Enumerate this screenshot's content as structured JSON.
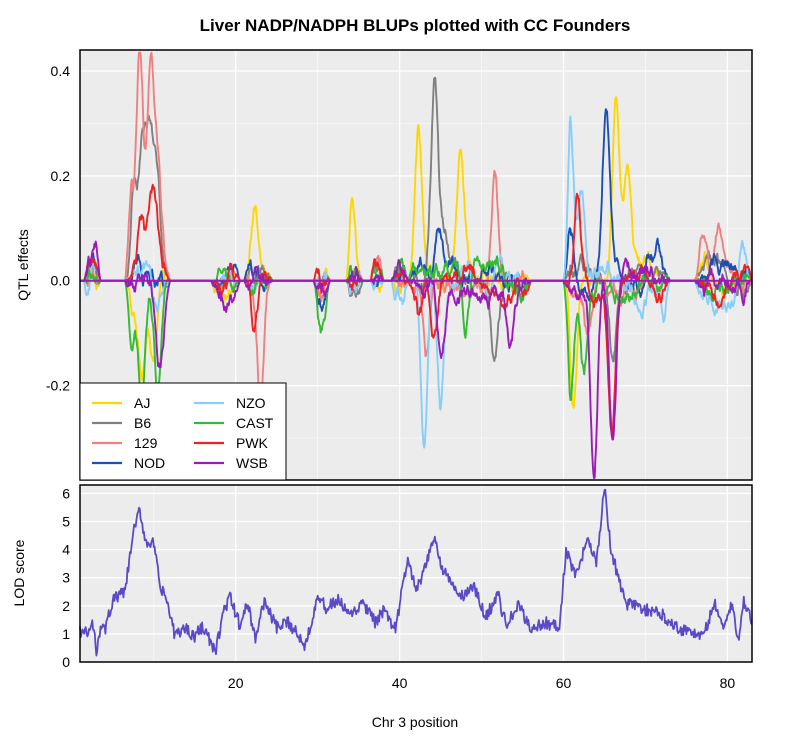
{
  "chart_data": {
    "type": "line",
    "title": "Liver NADP/NADPH BLUPs plotted with CC Founders",
    "xlabel": "Chr 3 position",
    "xlim": [
      1,
      83
    ],
    "xticks": [
      20,
      40,
      60,
      80
    ],
    "top_panel": {
      "ylabel": "QTL effects",
      "ylim": [
        -0.38,
        0.44
      ],
      "yticks": [
        -0.2,
        0.0,
        0.2,
        0.4
      ],
      "ytick_labels": [
        "-0.2",
        "0.0",
        "0.2",
        "0.4"
      ],
      "legend": {
        "placement": "bottom-left",
        "columns": 2
      },
      "segments": [
        [
          1.5,
          3.5
        ],
        [
          6.5,
          12
        ],
        [
          17,
          20.5
        ],
        [
          21,
          24.5
        ],
        [
          29.5,
          31.5
        ],
        [
          33.5,
          35.5
        ],
        [
          36.5,
          38
        ],
        [
          39,
          41
        ],
        [
          41,
          56
        ],
        [
          60,
          73
        ],
        [
          76,
          83
        ]
      ],
      "series": [
        {
          "name": "AJ",
          "color": "#FFD700",
          "anchors": [
            [
              7.5,
              -0.05
            ],
            [
              8.5,
              -0.15
            ],
            [
              10,
              -0.14
            ],
            [
              22.3,
              0.12
            ],
            [
              34.2,
              0.13
            ],
            [
              42.3,
              0.26
            ],
            [
              47.5,
              0.21
            ],
            [
              61.2,
              -0.26
            ],
            [
              66.4,
              0.33
            ],
            [
              67.8,
              0.21
            ]
          ]
        },
        {
          "name": "B6",
          "color": "#808080",
          "anchors": [
            [
              7.5,
              0.18
            ],
            [
              8.6,
              0.24
            ],
            [
              9.5,
              0.25
            ],
            [
              10.4,
              0.2
            ],
            [
              44.3,
              0.37
            ],
            [
              45.5,
              0.1
            ],
            [
              51.5,
              -0.13
            ],
            [
              66.0,
              -0.15
            ]
          ]
        },
        {
          "name": "129",
          "color": "#F08080",
          "anchors": [
            [
              7.0,
              0.18
            ],
            [
              8.3,
              0.43
            ],
            [
              9.6,
              0.38
            ],
            [
              10.5,
              0.18
            ],
            [
              23.0,
              -0.22
            ],
            [
              43.3,
              -0.14
            ],
            [
              51.6,
              0.22
            ],
            [
              63.0,
              -0.08
            ],
            [
              76.9,
              0.08
            ],
            [
              79.0,
              0.08
            ]
          ]
        },
        {
          "name": "NOD",
          "color": "#1C4FB5",
          "anchors": [
            [
              7.8,
              0.05
            ],
            [
              9.5,
              0.02
            ],
            [
              44.8,
              0.08
            ],
            [
              60.8,
              0.1
            ],
            [
              65.2,
              0.33
            ],
            [
              70.5,
              0.05
            ],
            [
              71.5,
              0.06
            ]
          ]
        },
        {
          "name": "NZO",
          "color": "#87CEFA",
          "anchors": [
            [
              1.6,
              -0.07
            ],
            [
              10.5,
              -0.06
            ],
            [
              43.0,
              -0.33
            ],
            [
              45.0,
              -0.26
            ],
            [
              60.8,
              0.29
            ],
            [
              62.2,
              0.14
            ],
            [
              72.3,
              -0.06
            ],
            [
              81.8,
              0.09
            ]
          ]
        },
        {
          "name": "CAST",
          "color": "#33BB33",
          "anchors": [
            [
              7.2,
              -0.1
            ],
            [
              8.5,
              -0.22
            ],
            [
              10.5,
              -0.2
            ],
            [
              30.5,
              -0.08
            ],
            [
              33.0,
              -0.14
            ],
            [
              48.0,
              -0.12
            ],
            [
              60.8,
              -0.2
            ],
            [
              62.5,
              -0.18
            ]
          ]
        },
        {
          "name": "PWK",
          "color": "#EE2222",
          "anchors": [
            [
              8.5,
              0.11
            ],
            [
              9.7,
              0.12
            ],
            [
              10.3,
              0.07
            ],
            [
              22.3,
              -0.1
            ],
            [
              29.8,
              0.04
            ],
            [
              36.5,
              0.04
            ],
            [
              42.5,
              -0.08
            ],
            [
              44.2,
              -0.1
            ],
            [
              61.7,
              0.17
            ],
            [
              65.9,
              -0.31
            ]
          ]
        },
        {
          "name": "WSB",
          "color": "#9B1BB8",
          "anchors": [
            [
              3.0,
              0.05
            ],
            [
              10.6,
              -0.14
            ],
            [
              11.5,
              -0.05
            ],
            [
              45.0,
              -0.12
            ],
            [
              53.5,
              -0.1
            ],
            [
              63.7,
              -0.38
            ],
            [
              66.0,
              -0.32
            ],
            [
              82.0,
              -0.07
            ]
          ]
        }
      ]
    },
    "bottom_panel": {
      "ylabel": "LOD score",
      "ylim": [
        0,
        6.3
      ],
      "yticks": [
        0,
        1,
        2,
        3,
        4,
        5,
        6
      ],
      "color": "#5A4AC8",
      "x": [
        1,
        2,
        2.5,
        3,
        3.5,
        4,
        5,
        6.5,
        7.5,
        8.3,
        9,
        10,
        10.8,
        11.5,
        12.5,
        14,
        15,
        16,
        17.5,
        18.5,
        19.3,
        20.5,
        21.5,
        22.4,
        23.5,
        25,
        26.5,
        28.5,
        30,
        31,
        32.5,
        34,
        35.5,
        37,
        38,
        39.5,
        41,
        42,
        43,
        44.2,
        45,
        46,
        47.5,
        49,
        50.5,
        52,
        53,
        54.5,
        56,
        58,
        59.5,
        60.3,
        61.5,
        63,
        64,
        65,
        65.8,
        66.5,
        67.5,
        69,
        70.5,
        72,
        74,
        75.5,
        77,
        78.5,
        79.5,
        80.5,
        81.3,
        82,
        83
      ],
      "y": [
        1.1,
        1.0,
        1.4,
        0.4,
        1.3,
        1.1,
        2.2,
        2.5,
        4.6,
        5.4,
        4.3,
        4.2,
        2.6,
        2.3,
        1.0,
        1.2,
        0.9,
        1.3,
        0.3,
        1.8,
        2.3,
        1.3,
        2.1,
        0.8,
        2.2,
        1.2,
        1.4,
        0.6,
        2.4,
        1.9,
        2.2,
        1.6,
        2.1,
        1.4,
        1.8,
        1.2,
        3.7,
        2.5,
        3.2,
        4.5,
        3.5,
        2.9,
        2.3,
        2.7,
        1.6,
        2.4,
        1.3,
        2.0,
        1.2,
        1.4,
        1.2,
        4.0,
        3.0,
        4.5,
        3.5,
        6.2,
        4.0,
        3.2,
        2.1,
        2.0,
        1.8,
        1.7,
        1.2,
        1.1,
        0.9,
        2.1,
        1.2,
        2.0,
        0.8,
        2.2,
        1.4
      ]
    }
  }
}
